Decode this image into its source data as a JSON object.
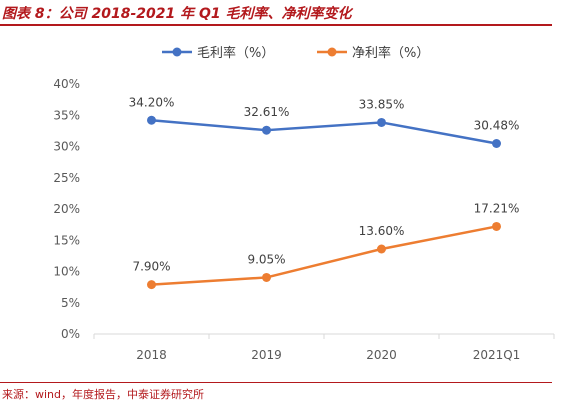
{
  "header": {
    "title": "图表 8：公司 2018-2021 年 Q1 毛利率、净利率变化"
  },
  "footer": {
    "source": "来源：wind，年度报告，中泰证券研究所"
  },
  "chart_data": {
    "type": "line",
    "categories": [
      "2018",
      "2019",
      "2020",
      "2021Q1"
    ],
    "series": [
      {
        "name": "毛利率（%）",
        "color": "#4472c4",
        "values": [
          34.2,
          32.61,
          33.85,
          30.48
        ],
        "data_labels": [
          "34.20%",
          "32.61%",
          "33.85%",
          "30.48%"
        ]
      },
      {
        "name": "净利率（%）",
        "color": "#ed7d31",
        "values": [
          7.9,
          9.05,
          13.6,
          17.21
        ],
        "data_labels": [
          "7.90%",
          "9.05%",
          "13.60%",
          "17.21%"
        ]
      }
    ],
    "ylim": [
      0,
      40
    ],
    "yticks": [
      0,
      5,
      10,
      15,
      20,
      25,
      30,
      35,
      40
    ],
    "ytick_labels": [
      "0%",
      "5%",
      "10%",
      "15%",
      "20%",
      "25%",
      "30%",
      "35%",
      "40%"
    ],
    "grid": false,
    "legend_position": "top"
  }
}
